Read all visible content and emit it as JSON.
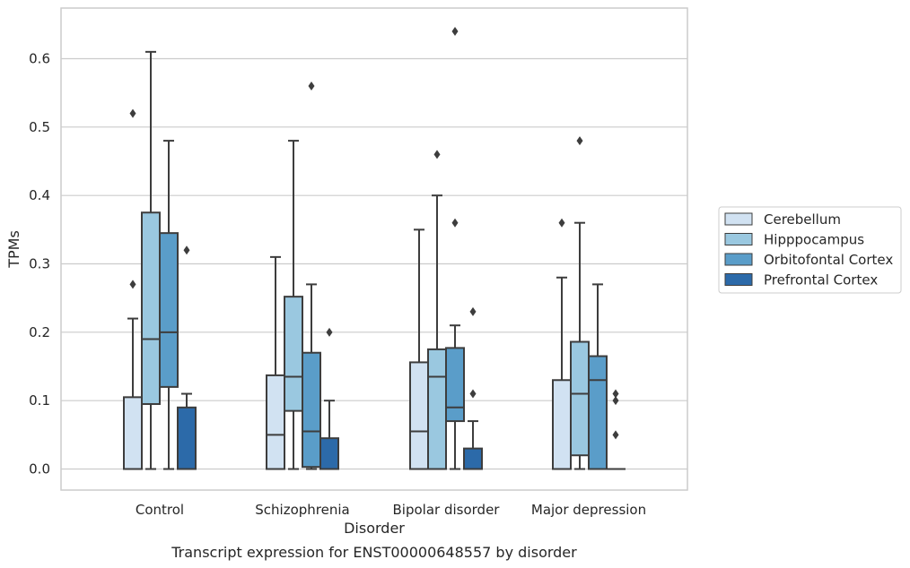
{
  "chart_data": {
    "type": "boxplot",
    "caption": "Transcript expression for ENST00000648557 by disorder",
    "xlabel": "Disorder",
    "ylabel": "TPMs",
    "ylim": [
      -0.03,
      0.675
    ],
    "yticks": [
      0.0,
      0.1,
      0.2,
      0.3,
      0.4,
      0.5,
      0.6
    ],
    "ytick_labels": [
      "0.0",
      "0.1",
      "0.2",
      "0.3",
      "0.4",
      "0.5",
      "0.6"
    ],
    "grid": "horizontal",
    "legend_position": "right",
    "categories": [
      "Control",
      "Schizophrenia",
      "Bipolar disorder",
      "Major depression"
    ],
    "series": [
      {
        "name": "Cerebellum",
        "color": "#d1e2f2",
        "boxes": [
          {
            "min": 0.0,
            "q1": 0.0,
            "median": 0.0,
            "q3": 0.105,
            "max": 0.22,
            "outliers": [
              0.27,
              0.52
            ]
          },
          {
            "min": 0.0,
            "q1": 0.0,
            "median": 0.05,
            "q3": 0.137,
            "max": 0.31,
            "outliers": []
          },
          {
            "min": 0.0,
            "q1": 0.0,
            "median": 0.055,
            "q3": 0.156,
            "max": 0.35,
            "outliers": []
          },
          {
            "min": 0.0,
            "q1": 0.0,
            "median": 0.0,
            "q3": 0.13,
            "max": 0.28,
            "outliers": [
              0.36
            ]
          }
        ]
      },
      {
        "name": "Hipppocampus",
        "color": "#9ac8e0",
        "boxes": [
          {
            "min": 0.0,
            "q1": 0.095,
            "median": 0.19,
            "q3": 0.375,
            "max": 0.61,
            "outliers": []
          },
          {
            "min": 0.0,
            "q1": 0.085,
            "median": 0.135,
            "q3": 0.252,
            "max": 0.48,
            "outliers": []
          },
          {
            "min": 0.0,
            "q1": 0.0,
            "median": 0.135,
            "q3": 0.175,
            "max": 0.4,
            "outliers": [
              0.46
            ]
          },
          {
            "min": 0.0,
            "q1": 0.02,
            "median": 0.11,
            "q3": 0.186,
            "max": 0.36,
            "outliers": [
              0.48
            ]
          }
        ]
      },
      {
        "name": "Orbitofontal Cortex",
        "color": "#5a9dc9",
        "boxes": [
          {
            "min": 0.0,
            "q1": 0.12,
            "median": 0.2,
            "q3": 0.345,
            "max": 0.48,
            "outliers": []
          },
          {
            "min": 0.0,
            "q1": 0.003,
            "median": 0.055,
            "q3": 0.17,
            "max": 0.27,
            "outliers": [
              0.56
            ]
          },
          {
            "min": 0.0,
            "q1": 0.07,
            "median": 0.09,
            "q3": 0.177,
            "max": 0.21,
            "outliers": [
              0.36,
              0.64
            ]
          },
          {
            "min": 0.0,
            "q1": 0.0,
            "median": 0.13,
            "q3": 0.165,
            "max": 0.27,
            "outliers": []
          }
        ]
      },
      {
        "name": "Prefrontal Cortex",
        "color": "#2c6aa9",
        "boxes": [
          {
            "min": 0.0,
            "q1": 0.0,
            "median": 0.0,
            "q3": 0.09,
            "max": 0.11,
            "outliers": [
              0.32
            ]
          },
          {
            "min": 0.0,
            "q1": 0.0,
            "median": 0.0,
            "q3": 0.045,
            "max": 0.1,
            "outliers": [
              0.2
            ]
          },
          {
            "min": 0.0,
            "q1": 0.0,
            "median": 0.0,
            "q3": 0.03,
            "max": 0.07,
            "outliers": [
              0.11,
              0.23
            ]
          },
          {
            "min": 0.0,
            "q1": 0.0,
            "median": 0.0,
            "q3": 0.0,
            "max": 0.0,
            "outliers": [
              0.05,
              0.1,
              0.11
            ]
          }
        ]
      }
    ]
  }
}
